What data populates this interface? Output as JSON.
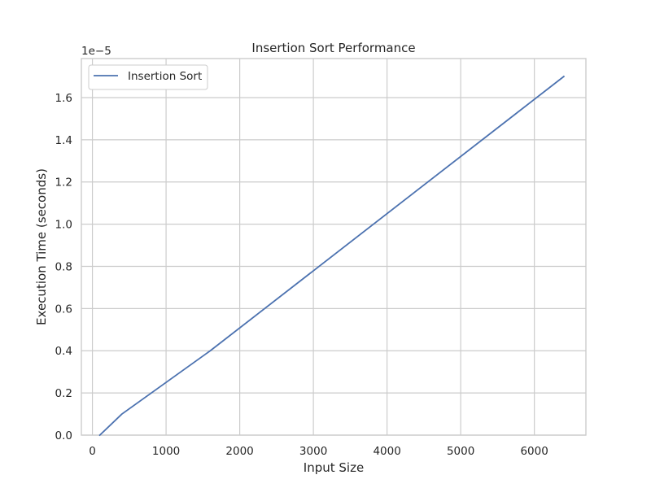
{
  "chart_data": {
    "type": "line",
    "title": "Insertion Sort Performance",
    "xlabel": "Input Size",
    "ylabel": "Execution Time (seconds)",
    "y_offset_label": "1e−5",
    "y_scale_factor": 1e-05,
    "xlim": [
      -150,
      6700
    ],
    "ylim": [
      0,
      1.785e-05
    ],
    "x_ticks": [
      0,
      1000,
      2000,
      3000,
      4000,
      5000,
      6000
    ],
    "x_tick_labels": [
      "0",
      "1000",
      "2000",
      "3000",
      "4000",
      "5000",
      "6000"
    ],
    "y_ticks": [
      0,
      2e-06,
      4e-06,
      6e-06,
      8e-06,
      1e-05,
      1.2e-05,
      1.4e-05,
      1.6e-05
    ],
    "y_tick_labels": [
      "0.0",
      "0.2",
      "0.4",
      "0.6",
      "0.8",
      "1.0",
      "1.2",
      "1.4",
      "1.6"
    ],
    "grid": true,
    "legend_position": "top-left",
    "series": [
      {
        "name": "Insertion Sort",
        "color": "#4c72b0",
        "x": [
          100,
          400,
          1600,
          6400
        ],
        "y": [
          0.0,
          1e-06,
          4e-06,
          1.7e-05
        ]
      }
    ]
  }
}
